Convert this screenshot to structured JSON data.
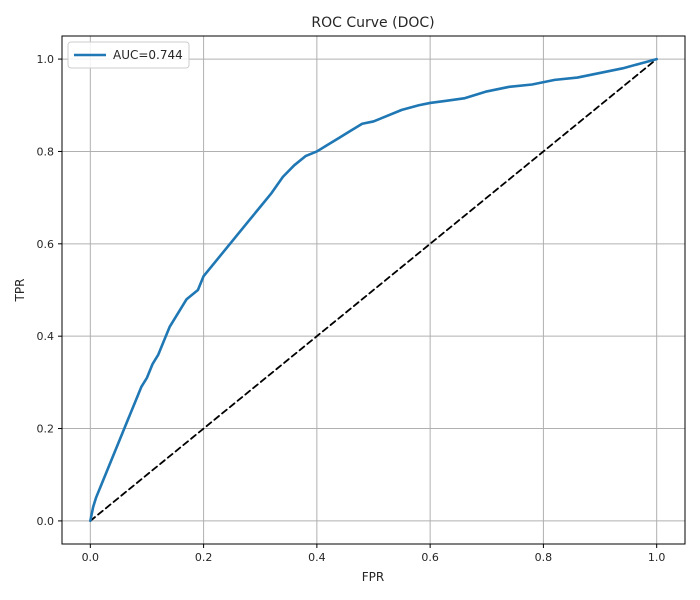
{
  "chart_data": {
    "type": "line",
    "title": "ROC Curve (DOC)",
    "xlabel": "FPR",
    "ylabel": "TPR",
    "xlim": [
      -0.05,
      1.05
    ],
    "ylim": [
      -0.05,
      1.05
    ],
    "x_ticks": [
      0.0,
      0.2,
      0.4,
      0.6,
      0.8,
      1.0
    ],
    "y_ticks": [
      0.0,
      0.2,
      0.4,
      0.6,
      0.8,
      1.0
    ],
    "x_tick_labels": [
      "0.0",
      "0.2",
      "0.4",
      "0.6",
      "0.8",
      "1.0"
    ],
    "y_tick_labels": [
      "0.0",
      "0.2",
      "0.4",
      "0.6",
      "0.8",
      "1.0"
    ],
    "grid": true,
    "legend_position": "top-left",
    "series": [
      {
        "name": "AUC=0.744",
        "color": "#1f77b4",
        "style": "solid",
        "x": [
          0.0,
          0.005,
          0.01,
          0.02,
          0.03,
          0.04,
          0.05,
          0.06,
          0.07,
          0.08,
          0.09,
          0.1,
          0.11,
          0.12,
          0.13,
          0.14,
          0.15,
          0.16,
          0.17,
          0.18,
          0.19,
          0.2,
          0.22,
          0.24,
          0.26,
          0.28,
          0.3,
          0.32,
          0.34,
          0.36,
          0.38,
          0.4,
          0.42,
          0.44,
          0.46,
          0.48,
          0.5,
          0.52,
          0.55,
          0.58,
          0.6,
          0.63,
          0.66,
          0.7,
          0.74,
          0.78,
          0.82,
          0.86,
          0.9,
          0.94,
          0.97,
          1.0
        ],
        "y": [
          0.0,
          0.03,
          0.05,
          0.08,
          0.11,
          0.14,
          0.17,
          0.2,
          0.23,
          0.26,
          0.29,
          0.31,
          0.34,
          0.36,
          0.39,
          0.42,
          0.44,
          0.46,
          0.48,
          0.49,
          0.5,
          0.53,
          0.56,
          0.59,
          0.62,
          0.65,
          0.68,
          0.71,
          0.745,
          0.77,
          0.79,
          0.8,
          0.815,
          0.83,
          0.845,
          0.86,
          0.865,
          0.875,
          0.89,
          0.9,
          0.905,
          0.91,
          0.915,
          0.93,
          0.94,
          0.945,
          0.955,
          0.96,
          0.97,
          0.98,
          0.99,
          1.0
        ]
      },
      {
        "name": "",
        "color": "#000000",
        "style": "dashed",
        "x": [
          0.0,
          1.0
        ],
        "y": [
          0.0,
          1.0
        ]
      }
    ]
  }
}
